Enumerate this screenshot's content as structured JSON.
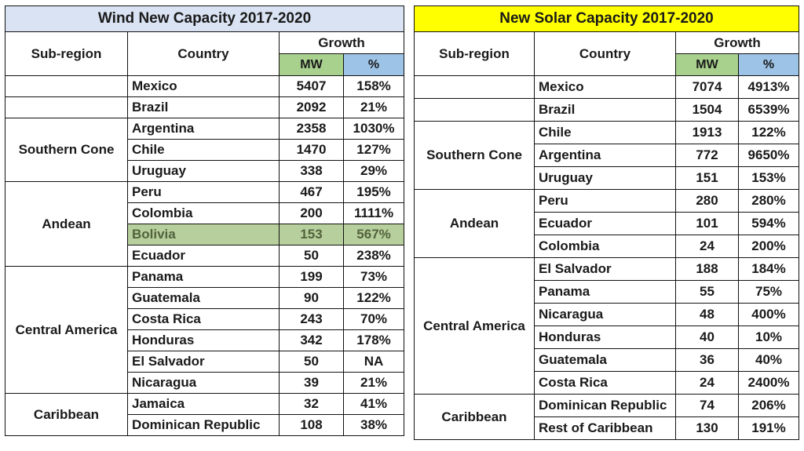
{
  "wind": {
    "title": "Wind New Capacity 2017-2020",
    "title_bg": "#dae3f3",
    "highlight_color": "#b7cf9c",
    "headers": {
      "subregion": "Sub-region",
      "country": "Country",
      "growth": "Growth",
      "mw": "MW",
      "pct": "%"
    },
    "rows": [
      {
        "subregion": "",
        "country": "Mexico",
        "mw": "5407",
        "pct": "158%"
      },
      {
        "subregion": "",
        "country": "Brazil",
        "mw": "2092",
        "pct": "21%"
      },
      {
        "subregion": "Southern Cone",
        "country": "Argentina",
        "mw": "2358",
        "pct": "1030%"
      },
      {
        "subregion": "",
        "country": "Chile",
        "mw": "1470",
        "pct": "127%"
      },
      {
        "subregion": "",
        "country": "Uruguay",
        "mw": "338",
        "pct": "29%"
      },
      {
        "subregion": "Andean",
        "country": "Peru",
        "mw": "467",
        "pct": "195%"
      },
      {
        "subregion": "",
        "country": "Colombia",
        "mw": "200",
        "pct": "1111%"
      },
      {
        "subregion": "",
        "country": "Bolivia",
        "mw": "153",
        "pct": "567%"
      },
      {
        "subregion": "",
        "country": "Ecuador",
        "mw": "50",
        "pct": "238%"
      },
      {
        "subregion": "Central America",
        "country": "Panama",
        "mw": "199",
        "pct": "73%"
      },
      {
        "subregion": "",
        "country": "Guatemala",
        "mw": "90",
        "pct": "122%"
      },
      {
        "subregion": "",
        "country": "Costa Rica",
        "mw": "243",
        "pct": "70%"
      },
      {
        "subregion": "",
        "country": "Honduras",
        "mw": "342",
        "pct": "178%"
      },
      {
        "subregion": "",
        "country": "El Salvador",
        "mw": "50",
        "pct": "NA"
      },
      {
        "subregion": "",
        "country": "Nicaragua",
        "mw": "39",
        "pct": "21%"
      },
      {
        "subregion": "Caribbean",
        "country": "Jamaica",
        "mw": "32",
        "pct": "41%"
      },
      {
        "subregion": "",
        "country": "Dominican Republic",
        "mw": "108",
        "pct": "38%"
      }
    ]
  },
  "solar": {
    "title": "New Solar Capacity 2017-2020",
    "title_bg": "#ffff00",
    "headers": {
      "subregion": "Sub-region",
      "country": "Country",
      "growth": "Growth",
      "mw": "MW",
      "pct": "%"
    },
    "rows": [
      {
        "subregion": "",
        "country": "Mexico",
        "mw": "7074",
        "pct": "4913%"
      },
      {
        "subregion": "",
        "country": "Brazil",
        "mw": "1504",
        "pct": "6539%"
      },
      {
        "subregion": "Southern Cone",
        "country": "Chile",
        "mw": "1913",
        "pct": "122%"
      },
      {
        "subregion": "",
        "country": "Argentina",
        "mw": "772",
        "pct": "9650%"
      },
      {
        "subregion": "",
        "country": "Uruguay",
        "mw": "151",
        "pct": "153%"
      },
      {
        "subregion": "Andean",
        "country": "Peru",
        "mw": "280",
        "pct": "280%"
      },
      {
        "subregion": "",
        "country": "Ecuador",
        "mw": "101",
        "pct": "594%"
      },
      {
        "subregion": "",
        "country": "Colombia",
        "mw": "24",
        "pct": "200%"
      },
      {
        "subregion": "Central America",
        "country": "El Salvador",
        "mw": "188",
        "pct": "184%"
      },
      {
        "subregion": "",
        "country": "Panama",
        "mw": "55",
        "pct": "75%"
      },
      {
        "subregion": "",
        "country": "Nicaragua",
        "mw": "48",
        "pct": "400%"
      },
      {
        "subregion": "",
        "country": "Honduras",
        "mw": "40",
        "pct": "10%"
      },
      {
        "subregion": "",
        "country": "Guatemala",
        "mw": "36",
        "pct": "40%"
      },
      {
        "subregion": "",
        "country": "Costa Rica",
        "mw": "24",
        "pct": "2400%"
      },
      {
        "subregion": "Caribbean",
        "country": "Dominican Republic",
        "mw": "74",
        "pct": "206%"
      },
      {
        "subregion": "",
        "country": "Rest of Caribbean",
        "mw": "130",
        "pct": "191%"
      }
    ]
  }
}
